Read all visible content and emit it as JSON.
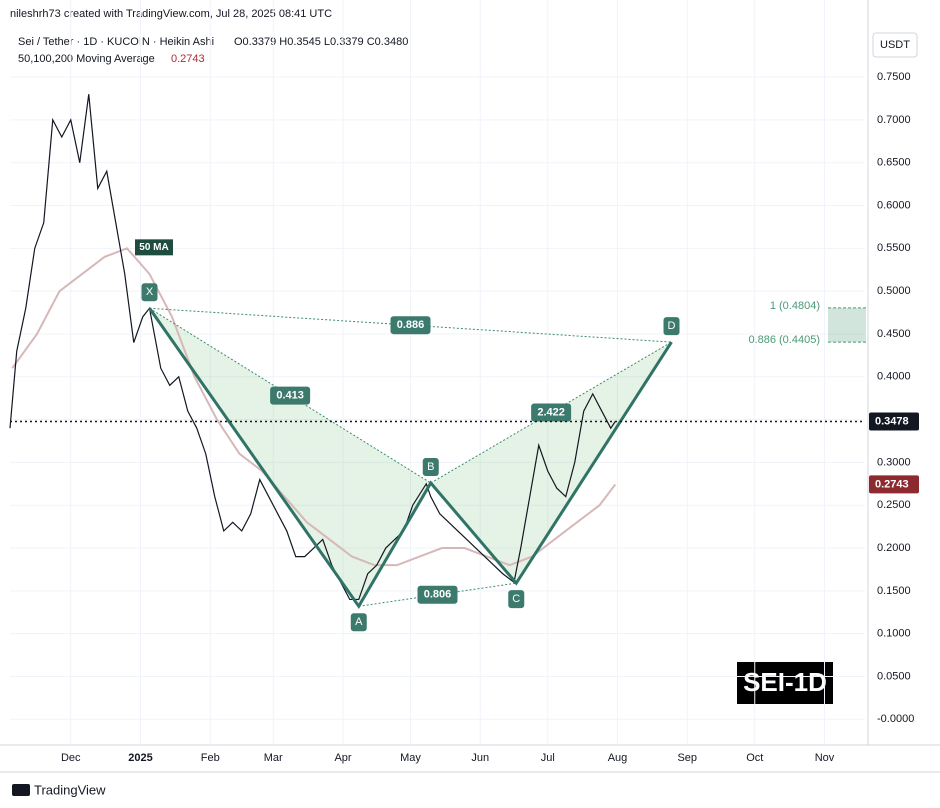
{
  "header": {
    "attribution": "nileshrh73 created with TradingView.com, Jul 28, 2025 08:41 UTC",
    "ohlc": "O0.3379 H0.3545 L0.3379 C0.3480",
    "currency": "USDT",
    "badge": "SEI-1D",
    "brand": "TradingView"
  },
  "chart_data": {
    "type": "line",
    "series": [
      {
        "name": "Sei / Tether · 1D · KUCOIN · Heikin Ashi",
        "color": "#131722",
        "x": [
          -27,
          -24,
          -20,
          -16,
          -12,
          -8,
          -4,
          0,
          4,
          8,
          12,
          16,
          20,
          24,
          28,
          32,
          35,
          40,
          44,
          48,
          52,
          56,
          60,
          64,
          68,
          72,
          76,
          80,
          84,
          88,
          92,
          96,
          100,
          104,
          108,
          112,
          116,
          120,
          124,
          128,
          132,
          136,
          140,
          144,
          148,
          152,
          158,
          160,
          164,
          168,
          172,
          176,
          180,
          184,
          188,
          192,
          197,
          200,
          204,
          208,
          212,
          216,
          220,
          224,
          228,
          232,
          236,
          240,
          242
        ],
        "values": [
          0.34,
          0.43,
          0.48,
          0.55,
          0.58,
          0.7,
          0.68,
          0.7,
          0.65,
          0.73,
          0.62,
          0.64,
          0.58,
          0.52,
          0.44,
          0.47,
          0.48,
          0.41,
          0.39,
          0.4,
          0.36,
          0.34,
          0.31,
          0.26,
          0.22,
          0.23,
          0.22,
          0.24,
          0.28,
          0.26,
          0.24,
          0.22,
          0.19,
          0.19,
          0.2,
          0.21,
          0.18,
          0.16,
          0.14,
          0.14,
          0.17,
          0.18,
          0.2,
          0.21,
          0.22,
          0.25,
          0.275,
          0.26,
          0.24,
          0.23,
          0.22,
          0.21,
          0.2,
          0.19,
          0.18,
          0.17,
          0.16,
          0.2,
          0.26,
          0.32,
          0.29,
          0.27,
          0.26,
          0.3,
          0.36,
          0.38,
          0.36,
          0.34,
          0.3478
        ]
      },
      {
        "name": "50,100,200 Moving Average",
        "color": "#d7b8b8",
        "x": [
          -26,
          -15,
          -5,
          5,
          15,
          25,
          35,
          45,
          55,
          65,
          75,
          85,
          95,
          105,
          115,
          125,
          135,
          145,
          155,
          165,
          175,
          185,
          195,
          205,
          215,
          225,
          235,
          242
        ],
        "values": [
          0.41,
          0.45,
          0.5,
          0.52,
          0.54,
          0.55,
          0.52,
          0.47,
          0.4,
          0.35,
          0.31,
          0.29,
          0.26,
          0.23,
          0.21,
          0.19,
          0.18,
          0.18,
          0.19,
          0.2,
          0.2,
          0.19,
          0.18,
          0.19,
          0.21,
          0.23,
          0.25,
          0.2743
        ]
      }
    ],
    "ma_label": "50 MA",
    "last_price": 0.3478,
    "pattern": [
      {
        "label": "X",
        "x": 35,
        "value": 0.48
      },
      {
        "label": "A",
        "x": 128,
        "value": 0.132
      },
      {
        "label": "B",
        "x": 160,
        "value": 0.276
      },
      {
        "label": "C",
        "x": 198,
        "value": 0.159
      },
      {
        "label": "D",
        "x": 267,
        "value": 0.4405
      }
    ],
    "ratios": [
      "0.886",
      "0.413",
      "2.422",
      "0.806"
    ],
    "fib_levels": [
      {
        "value": 0.4804,
        "label": "1 (0.4804)"
      },
      {
        "value": 0.4405,
        "label": "0.886 (0.4405)"
      }
    ],
    "xlim": [
      -27,
      353
    ],
    "ylim": [
      -0.03,
      0.84
    ],
    "xticks": [
      {
        "value": 0,
        "label": "Dec"
      },
      {
        "value": 31,
        "label": "2025"
      },
      {
        "value": 62,
        "label": "Feb"
      },
      {
        "value": 90,
        "label": "Mar"
      },
      {
        "value": 121,
        "label": "Apr"
      },
      {
        "value": 151,
        "label": "May"
      },
      {
        "value": 182,
        "label": "Jun"
      },
      {
        "value": 212,
        "label": "Jul"
      },
      {
        "value": 243,
        "label": "Aug"
      },
      {
        "value": 274,
        "label": "Sep"
      },
      {
        "value": 304,
        "label": "Oct"
      },
      {
        "value": 335,
        "label": "Nov"
      }
    ],
    "yticks": [
      {
        "value": 0,
        "label": "-0.0000"
      },
      {
        "value": 0.05,
        "label": "0.0500"
      },
      {
        "value": 0.1,
        "label": "0.1000"
      },
      {
        "value": 0.15,
        "label": "0.1500"
      },
      {
        "value": 0.2,
        "label": "0.2000"
      },
      {
        "value": 0.25,
        "label": "0.2500"
      },
      {
        "value": 0.3,
        "label": "0.3000"
      },
      {
        "value": 0.35,
        "label": "0.3500"
      },
      {
        "value": 0.4,
        "label": "0.4000"
      },
      {
        "value": 0.45,
        "label": "0.4500"
      },
      {
        "value": 0.5,
        "label": "0.5000"
      },
      {
        "value": 0.55,
        "label": "0.5500"
      },
      {
        "value": 0.6,
        "label": "0.6000"
      },
      {
        "value": 0.65,
        "label": "0.6500"
      },
      {
        "value": 0.7,
        "label": "0.7000"
      },
      {
        "value": 0.75,
        "label": "0.7500"
      }
    ],
    "grid": true
  }
}
